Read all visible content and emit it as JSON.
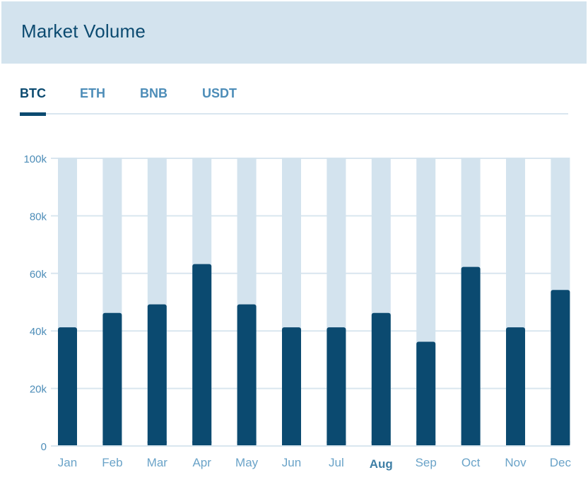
{
  "header": {
    "title": "Market Volume"
  },
  "tabs": [
    {
      "label": "BTC",
      "active": true
    },
    {
      "label": "ETH",
      "active": false
    },
    {
      "label": "BNB",
      "active": false
    },
    {
      "label": "USDT",
      "active": false
    }
  ],
  "colors": {
    "bar": "#0b4a70",
    "track": "#d3e3ee",
    "grid": "#d9e6ef",
    "axis_text": "#4d8db8"
  },
  "chart_data": {
    "type": "bar",
    "title": "Market Volume",
    "series_name": "BTC",
    "categories": [
      "Jan",
      "Feb",
      "Mar",
      "Apr",
      "May",
      "Jun",
      "Jul",
      "Aug",
      "Sep",
      "Oct",
      "Nov",
      "Dec"
    ],
    "values": [
      41000,
      46000,
      49000,
      63000,
      49000,
      41000,
      41000,
      46000,
      36000,
      62000,
      41000,
      54000
    ],
    "highlighted_category": "Aug",
    "ylim": [
      0,
      100000
    ],
    "yticks": [
      0,
      20000,
      40000,
      60000,
      80000,
      100000
    ],
    "ytick_labels": [
      "0",
      "20k",
      "40k",
      "60k",
      "80k",
      "100k"
    ],
    "grid": true,
    "xlabel": "",
    "ylabel": ""
  }
}
